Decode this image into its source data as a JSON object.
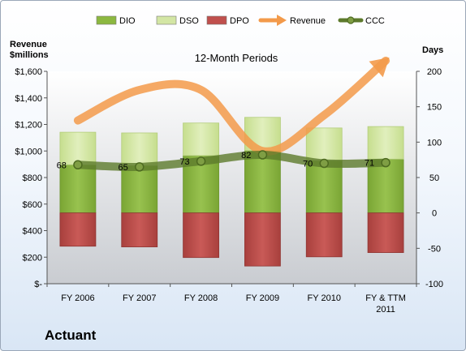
{
  "company": "Actuant",
  "chart_data": {
    "type": "bar",
    "title": "12-Month Periods",
    "y_left_label": [
      "Revenue",
      "$millions"
    ],
    "y_right_label": "Days",
    "categories": [
      "FY 2006",
      "FY 2007",
      "FY 2008",
      "FY 2009",
      "FY 2010",
      "FY & TTM 2011"
    ],
    "y_left_ticks": [
      "$-",
      "$200",
      "$400",
      "$600",
      "$800",
      "$1,000",
      "$1,200",
      "$1,400",
      "$1,600"
    ],
    "y_left_lim": [
      0,
      1600
    ],
    "y_right_ticks": [
      "-100",
      "-50",
      "0",
      "50",
      "100",
      "150",
      "200"
    ],
    "y_right_lim": [
      -100,
      200
    ],
    "legend": [
      {
        "name": "DIO",
        "kind": "bar",
        "color": "#8cb840"
      },
      {
        "name": "DSO",
        "kind": "bar",
        "color": "#d3e6a4"
      },
      {
        "name": "DPO",
        "kind": "bar",
        "color": "#c0504d"
      },
      {
        "name": "Revenue",
        "kind": "arrow",
        "color": "#f39a4a"
      },
      {
        "name": "CCC",
        "kind": "line-marker",
        "color": "#5d7a2c"
      }
    ],
    "legend_position": "top",
    "series": [
      {
        "name": "DIO",
        "axis": "right",
        "values": [
          68,
          67,
          81,
          88,
          74,
          76
        ]
      },
      {
        "name": "DSO",
        "axis": "right",
        "values": [
          46,
          46,
          46,
          47,
          46,
          46
        ]
      },
      {
        "name": "DPO",
        "axis": "right",
        "values": [
          -47,
          -48,
          -63,
          -75,
          -62,
          -56
        ]
      },
      {
        "name": "Revenue",
        "axis": "left",
        "values": [
          1230,
          1460,
          1460,
          1000,
          1270,
          1680
        ]
      },
      {
        "name": "CCC",
        "axis": "right",
        "values": [
          68,
          65,
          73,
          82,
          70,
          71
        ]
      }
    ],
    "ccc_labels": [
      "68",
      "65",
      "73",
      "82",
      "70",
      "71"
    ],
    "grid": false
  }
}
